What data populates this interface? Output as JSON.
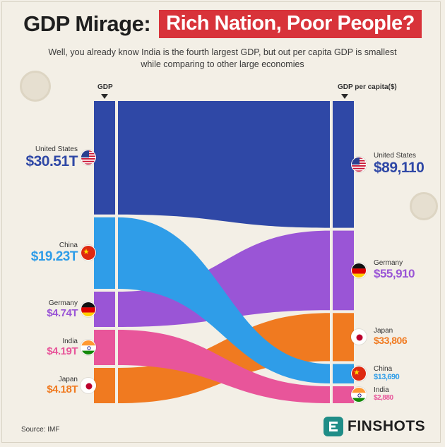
{
  "header": {
    "title_lead": "GDP Mirage:",
    "title_highlight": "Rich Nation, Poor People?",
    "subtitle": "Well, you already know India is the fourth largest GDP, but out per capita GDP is smallest while comparing to other large economies"
  },
  "columns": {
    "left_header": "GDP",
    "right_header": "GDP per capita($)"
  },
  "colors": {
    "United States": "#2f48a6",
    "China": "#2f9de8",
    "Germany": "#9a55d6",
    "India": "#e8559a",
    "Japan": "#f07a20"
  },
  "chart_data": {
    "type": "sankey",
    "title": "Rich Nation, Poor People?",
    "left": {
      "label": "GDP",
      "items": [
        {
          "country": "United States",
          "value": 30.51,
          "display": "$30.51T",
          "flag": "us-flag-icon"
        },
        {
          "country": "China",
          "value": 19.23,
          "display": "$19.23T",
          "flag": "china-flag-icon"
        },
        {
          "country": "Germany",
          "value": 4.74,
          "display": "$4.74T",
          "flag": "germany-flag-icon"
        },
        {
          "country": "India",
          "value": 4.19,
          "display": "$4.19T",
          "flag": "india-flag-icon"
        },
        {
          "country": "Japan",
          "value": 4.18,
          "display": "$4.18T",
          "flag": "japan-flag-icon"
        }
      ]
    },
    "right": {
      "label": "GDP per capita($)",
      "items": [
        {
          "country": "United States",
          "value": 89110,
          "display": "$89,110",
          "flag": "us-flag-icon"
        },
        {
          "country": "Germany",
          "value": 55910,
          "display": "$55,910",
          "flag": "germany-flag-icon"
        },
        {
          "country": "Japan",
          "value": 33806,
          "display": "$33,806",
          "flag": "japan-flag-icon"
        },
        {
          "country": "China",
          "value": 13690,
          "display": "$13,690",
          "flag": "china-flag-icon"
        },
        {
          "country": "India",
          "value": 2880,
          "display": "$2,880",
          "flag": "india-flag-icon"
        }
      ]
    }
  },
  "footer": {
    "source": "Source: IMF",
    "brand": "FINSHOTS"
  }
}
